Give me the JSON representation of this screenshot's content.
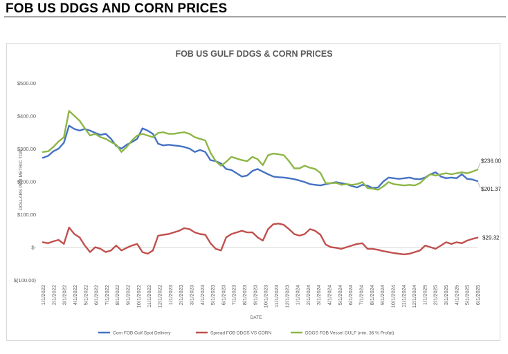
{
  "page": {
    "header": "FOB US DDGS AND CORN PRICES"
  },
  "chart_data": {
    "type": "line",
    "title": "FOB US GULF DDGS & CORN PRICES",
    "xlabel": "DATE",
    "ylabel": "DOLLARS PER METRIC TON",
    "ylim": [
      -100,
      500
    ],
    "yticks": [
      500,
      400,
      300,
      200,
      100,
      0,
      -100
    ],
    "ytick_labels": [
      "$500.00",
      "$400.00",
      "$300.00",
      "$200.00",
      "$100.00",
      "$-",
      "$(100.00)"
    ],
    "grid": false,
    "legend": "bottom",
    "x_tick_labels": [
      "1/1/2022",
      "2/1/2022",
      "3/1/2022",
      "4/1/2022",
      "5/1/2022",
      "6/1/2022",
      "7/1/2022",
      "8/1/2022",
      "9/1/2022",
      "10/1/2022",
      "11/1/2022",
      "12/1/2022",
      "1/1/2023",
      "2/1/2023",
      "3/1/2023",
      "4/1/2023",
      "5/1/2023",
      "6/1/2023",
      "7/1/2023",
      "8/1/2023",
      "9/1/2023",
      "10/1/2023",
      "11/1/2023",
      "12/1/2023",
      "1/1/2024",
      "2/1/2024",
      "3/1/2024",
      "4/1/2024",
      "5/1/2024",
      "6/1/2024",
      "7/1/2024",
      "8/1/2024",
      "9/1/2024",
      "10/1/2024",
      "11/1/2024",
      "12/1/2024",
      "1/1/2025",
      "2/1/2025",
      "3/1/2025",
      "4/1/2025",
      "5/1/2025",
      "6/1/2025"
    ],
    "x": [
      "1/1/2022",
      "1/15/2022",
      "2/1/2022",
      "2/15/2022",
      "3/1/2022",
      "3/15/2022",
      "4/1/2022",
      "4/15/2022",
      "5/1/2022",
      "5/15/2022",
      "6/1/2022",
      "6/15/2022",
      "7/1/2022",
      "7/15/2022",
      "8/1/2022",
      "8/15/2022",
      "9/1/2022",
      "9/15/2022",
      "10/1/2022",
      "10/15/2022",
      "11/1/2022",
      "11/15/2022",
      "12/1/2022",
      "12/15/2022",
      "1/1/2023",
      "1/15/2023",
      "2/1/2023",
      "2/15/2023",
      "3/1/2023",
      "3/15/2023",
      "4/1/2023",
      "4/15/2023",
      "5/1/2023",
      "5/15/2023",
      "6/1/2023",
      "6/15/2023",
      "7/1/2023",
      "7/15/2023",
      "8/1/2023",
      "8/15/2023",
      "9/1/2023",
      "9/15/2023",
      "10/1/2023",
      "10/15/2023",
      "11/1/2023",
      "11/15/2023",
      "12/1/2023",
      "12/15/2023",
      "1/1/2024",
      "1/15/2024",
      "2/1/2024",
      "2/15/2024",
      "3/1/2024",
      "3/15/2024",
      "4/1/2024",
      "4/15/2024",
      "5/1/2024",
      "5/15/2024",
      "6/1/2024",
      "6/15/2024",
      "7/1/2024",
      "7/15/2024",
      "8/1/2024",
      "8/15/2024",
      "9/1/2024",
      "9/15/2024",
      "10/1/2024",
      "10/15/2024",
      "11/1/2024",
      "11/15/2024",
      "12/1/2024",
      "12/15/2024",
      "1/1/2025",
      "1/15/2025",
      "2/1/2025",
      "2/15/2025",
      "3/1/2025",
      "3/15/2025",
      "4/1/2025",
      "4/15/2025",
      "5/1/2025",
      "5/15/2025",
      "6/1/2025",
      "6/15/2025"
    ],
    "series": [
      {
        "name": "Corn FOB Gulf Spot Delivery",
        "color": "#4472c4",
        "values": [
          272,
          278,
          292,
          300,
          318,
          370,
          360,
          355,
          360,
          355,
          348,
          342,
          345,
          330,
          308,
          300,
          312,
          320,
          330,
          362,
          355,
          345,
          315,
          310,
          312,
          310,
          308,
          305,
          300,
          290,
          296,
          290,
          265,
          262,
          255,
          238,
          235,
          225,
          215,
          218,
          232,
          238,
          230,
          222,
          215,
          213,
          212,
          210,
          207,
          203,
          198,
          192,
          190,
          188,
          192,
          195,
          198,
          195,
          192,
          186,
          182,
          190,
          187,
          180,
          182,
          200,
          212,
          210,
          208,
          210,
          212,
          208,
          207,
          212,
          222,
          228,
          215,
          210,
          212,
          210,
          222,
          208,
          206,
          201
        ],
        "end_label": "$201.37"
      },
      {
        "name": "Spread FOB DDGS VS CORN",
        "color": "#c0504d",
        "values": [
          15,
          12,
          18,
          22,
          10,
          60,
          40,
          30,
          5,
          -15,
          0,
          -5,
          -15,
          -10,
          5,
          -10,
          -2,
          5,
          10,
          -15,
          -20,
          -10,
          35,
          38,
          40,
          45,
          50,
          58,
          55,
          45,
          40,
          38,
          12,
          -5,
          -10,
          30,
          40,
          45,
          50,
          45,
          45,
          30,
          20,
          55,
          70,
          72,
          68,
          55,
          40,
          35,
          40,
          55,
          50,
          38,
          8,
          0,
          -2,
          -5,
          0,
          5,
          10,
          12,
          -5,
          -5,
          -8,
          -12,
          -15,
          -18,
          -20,
          -22,
          -20,
          -15,
          -10,
          5,
          0,
          -5,
          5,
          15,
          10,
          15,
          12,
          20,
          25,
          29
        ]
      },
      {
        "name": "DDGS FOB Vessel GULF  (min. 36 % Profat)",
        "color": "#8db646",
        "values": [
          290,
          292,
          305,
          322,
          335,
          415,
          400,
          385,
          362,
          340,
          345,
          335,
          330,
          320,
          312,
          290,
          305,
          325,
          340,
          345,
          340,
          335,
          348,
          350,
          345,
          345,
          348,
          350,
          345,
          335,
          330,
          325,
          288,
          262,
          248,
          260,
          275,
          270,
          265,
          262,
          275,
          268,
          250,
          280,
          285,
          283,
          280,
          262,
          240,
          240,
          248,
          242,
          238,
          226,
          195,
          195,
          196,
          190,
          192,
          190,
          192,
          198,
          180,
          178,
          175,
          185,
          198,
          192,
          190,
          188,
          190,
          188,
          195,
          210,
          222,
          218,
          222,
          225,
          222,
          225,
          228,
          225,
          230,
          236
        ],
        "end_label": "$236.00"
      }
    ],
    "end_labels": {
      "ddgs": "$236.00",
      "corn": "$201.37",
      "spread": "$29.32"
    }
  }
}
